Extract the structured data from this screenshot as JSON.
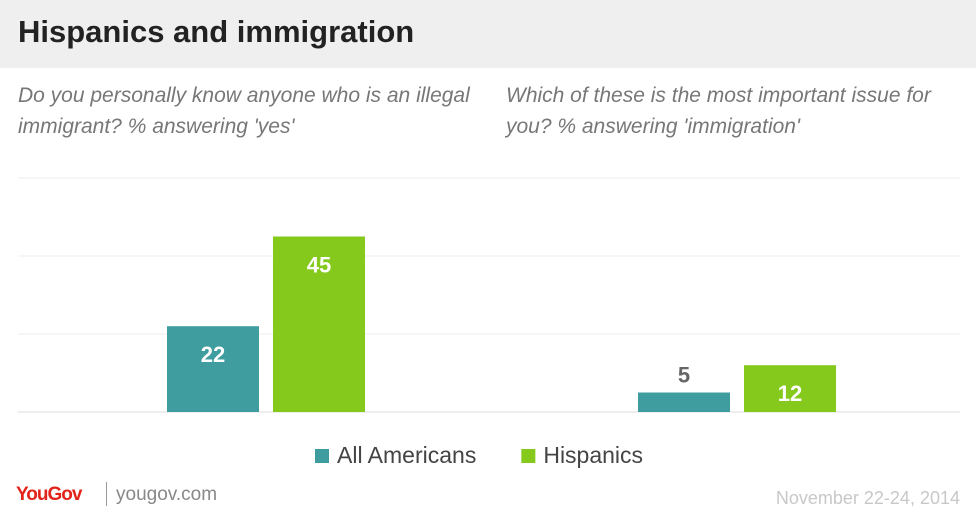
{
  "chart_data": {
    "type": "bar",
    "title": "Hispanics and immigration",
    "categories": [
      "Do you personally know anyone who is an illegal immigrant? % answering 'yes'",
      "Which of these is the most important issue for you? % answering 'immigration'"
    ],
    "series": [
      {
        "name": "All Americans",
        "color": "#3f9c9f",
        "values": [
          22,
          5
        ]
      },
      {
        "name": "Hispanics",
        "color": "#84c91c",
        "values": [
          45,
          12
        ]
      }
    ],
    "ylim": [
      0,
      60
    ],
    "yticks": [
      0,
      20,
      40,
      60
    ],
    "grid": true,
    "legend": "bottom"
  },
  "footer": {
    "brand": "YouGov",
    "site": "yougov.com",
    "date": "November 22-24, 2014"
  }
}
